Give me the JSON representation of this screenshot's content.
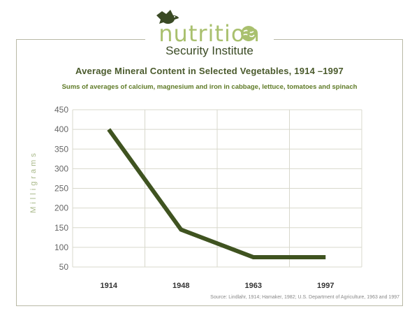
{
  "logo": {
    "word": "nutrition",
    "subtitle": "Security Institute",
    "bird_icon": "bird-icon",
    "globe_icon": "globe-icon"
  },
  "chart_data": {
    "type": "line",
    "title": "Average Mineral Content in Selected Vegetables, 1914 –1997",
    "subtitle": "Sums of averages of calcium, magnesium and iron in cabbage, lettuce, tomatoes and spinach",
    "ylabel": "Milligrams",
    "xlabel": "",
    "categories": [
      "1914",
      "1948",
      "1963",
      "1997"
    ],
    "series": [
      {
        "values": [
          400,
          145,
          75,
          75
        ]
      }
    ],
    "ylim": [
      50,
      450
    ],
    "yticks": [
      450,
      400,
      350,
      300,
      250,
      200,
      150,
      100,
      50
    ],
    "grid": true,
    "line_color": "#3f5320",
    "grid_color": "#d8d8cc",
    "source": "Source: Lindlahr, 1914; Hamaker, 1982; U.S. Department of Agriculture, 1963 and 1997"
  }
}
